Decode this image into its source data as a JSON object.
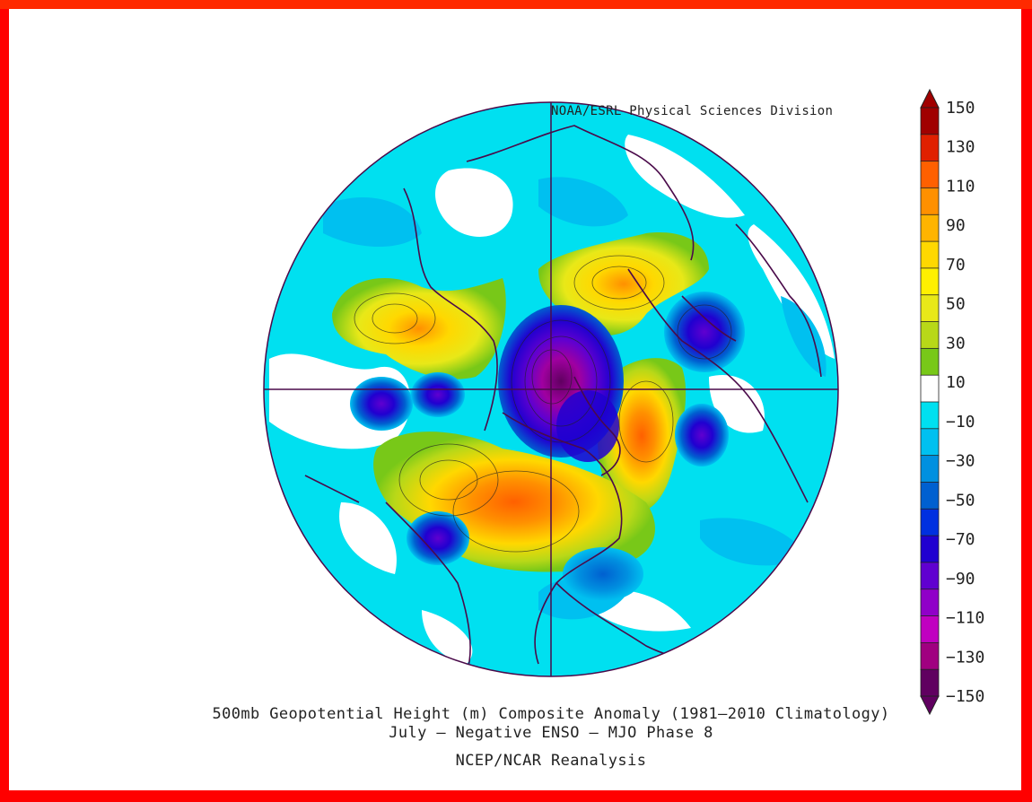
{
  "map": {
    "credit": "NOAA/ESRL Physical Sciences Division",
    "title_line1": "500mb Geopotential Height (m) Composite Anomaly (1981–2010 Climatology)",
    "title_line2": "July – Negative ENSO – MJO Phase 8",
    "title_line3": "NCEP/NCAR Reanalysis",
    "projection": "north-polar-stereographic"
  },
  "colorbar": {
    "labels": [
      "150",
      "130",
      "110",
      "90",
      "70",
      "50",
      "30",
      "10",
      "−10",
      "−30",
      "−50",
      "−70",
      "−90",
      "−110",
      "−130",
      "−150"
    ],
    "colors": [
      "#a00000",
      "#e02000",
      "#ff6000",
      "#ff9000",
      "#ffb400",
      "#ffd800",
      "#fff000",
      "#e8e818",
      "#b8d818",
      "#78c818",
      "#ffffff",
      "#00e0f0",
      "#00c0f0",
      "#0090e0",
      "#0060d0",
      "#0030e0",
      "#2000d0",
      "#6000d0",
      "#9000c8",
      "#c000c0",
      "#a00080",
      "#600060"
    ]
  },
  "anomalies": [
    {
      "name": "center-low",
      "value": -150,
      "color": "#600060"
    },
    {
      "name": "greenland-high",
      "value": 70,
      "color": "#ffd800"
    },
    {
      "name": "east-asia-high",
      "value": 70,
      "color": "#ffb400"
    },
    {
      "name": "north-america-high",
      "value": 90,
      "color": "#ff9000"
    },
    {
      "name": "europe-low",
      "value": -90,
      "color": "#6000d0"
    }
  ]
}
